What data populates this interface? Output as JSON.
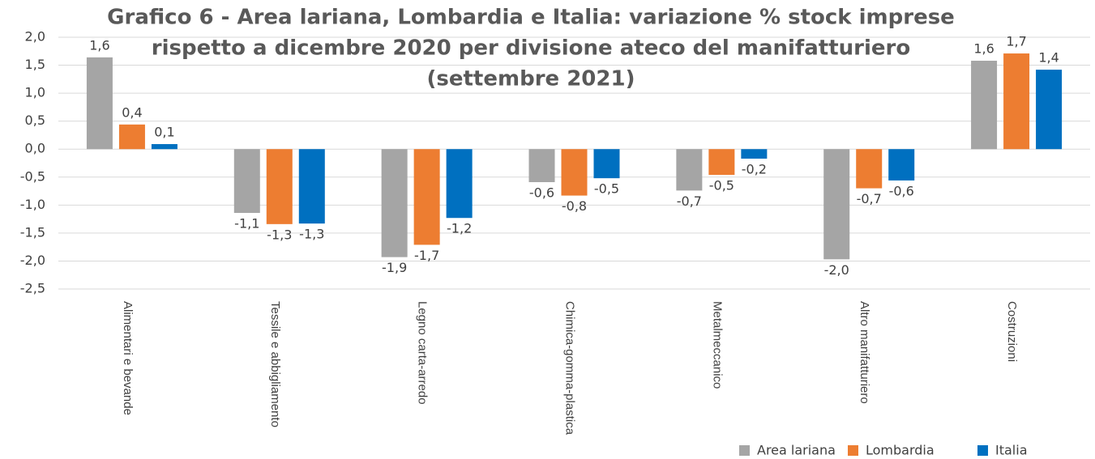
{
  "chart_data": {
    "type": "bar",
    "title": [
      "Grafico 6 - Area lariana, Lombardia e Italia: variazione % stock imprese",
      "rispetto a dicembre 2020 per divisione ateco del manifatturiero",
      "(settembre 2021)"
    ],
    "categories": [
      "Alimentari e bevande",
      "Tessile e abbigliamento",
      "Legno carta-arredo",
      "Chimica-gomma-plastica",
      "Metalmeccanico",
      "Altro manifatturiero",
      "Costruzioni"
    ],
    "series": [
      {
        "name": "Area lariana",
        "color": "#a5a5a5",
        "values": [
          1.64,
          -1.14,
          -1.93,
          -0.59,
          -0.74,
          -1.97,
          1.58
        ],
        "value_labels": [
          "1,6",
          "-1,1",
          "-1,9",
          "-0,6",
          "-0,7",
          "-2,0",
          "1,6"
        ]
      },
      {
        "name": "Lombardia",
        "color": "#ed7d31",
        "values": [
          0.44,
          -1.34,
          -1.71,
          -0.83,
          -0.46,
          -0.7,
          1.71
        ],
        "value_labels": [
          "0,4",
          "-1,3",
          "-1,7",
          "-0,8",
          "-0,5",
          "-0,7",
          "1,7"
        ]
      },
      {
        "name": "Italia",
        "color": "#0070c0",
        "values": [
          0.09,
          -1.33,
          -1.23,
          -0.52,
          -0.17,
          -0.56,
          1.42
        ],
        "value_labels": [
          "0,1",
          "-1,3",
          "-1,2",
          "-0,5",
          "-0,2",
          "-0,6",
          "1,4"
        ]
      }
    ],
    "ylim": [
      -2.5,
      2.0
    ],
    "yticks": [
      {
        "value": -2.5,
        "label": "-2,5"
      },
      {
        "value": -2.0,
        "label": "-2,0"
      },
      {
        "value": -1.5,
        "label": "-1,5"
      },
      {
        "value": -1.0,
        "label": "-1,0"
      },
      {
        "value": -0.5,
        "label": "-0,5"
      },
      {
        "value": 0.0,
        "label": "0,0"
      },
      {
        "value": 0.5,
        "label": "0,5"
      },
      {
        "value": 1.0,
        "label": "1,0"
      },
      {
        "value": 1.5,
        "label": "1,5"
      },
      {
        "value": 2.0,
        "label": "2,0"
      }
    ],
    "grid": true,
    "legend": "bottom-right"
  }
}
